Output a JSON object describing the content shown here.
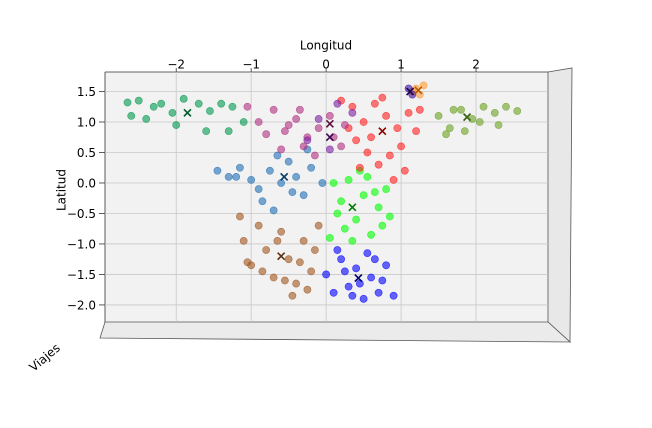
{
  "chart_data": {
    "type": "scatter",
    "x_label": "Longitud",
    "y_label": "Latitud",
    "z_label": "Viajes",
    "xlim": [
      -2.95,
      2.96
    ],
    "ylim": [
      -2.28,
      1.82
    ],
    "xticks": [
      {
        "value": -2,
        "label": "−2"
      },
      {
        "value": -1,
        "label": "−1"
      },
      0,
      1,
      2
    ],
    "yticks": [
      {
        "value": 1.5,
        "label": "1.5"
      },
      {
        "value": 1.0,
        "label": "1.0"
      },
      {
        "value": 0.5,
        "label": "0.5"
      },
      {
        "value": 0.0,
        "label": "0.0"
      },
      {
        "value": -0.5,
        "label": "−0.5"
      },
      {
        "value": -1.0,
        "label": "−1.0"
      },
      {
        "value": -1.5,
        "label": "−1.5"
      },
      {
        "value": -2.0,
        "label": "−2.0"
      }
    ],
    "grid": true,
    "series": [
      {
        "color": "#00994d",
        "centroid_color": "#005a2d",
        "centroid": [
          -1.85,
          1.15
        ],
        "x": [
          -2.65,
          -2.5,
          -2.3,
          -2.2,
          -2.05,
          -1.9,
          -1.7,
          -1.55,
          -1.4,
          -1.25,
          -1.1,
          -2.4,
          -2.0,
          -1.6,
          -1.3,
          -2.6
        ],
        "y": [
          1.32,
          1.35,
          1.25,
          1.3,
          1.15,
          1.38,
          1.3,
          1.18,
          1.3,
          1.25,
          1.0,
          1.05,
          0.95,
          0.85,
          0.85,
          1.1
        ]
      },
      {
        "color": "#1f6fb4",
        "centroid_color": "#0d3c66",
        "centroid": [
          -0.56,
          0.1
        ],
        "x": [
          -1.45,
          -1.3,
          -1.15,
          -1.0,
          -0.9,
          -0.75,
          -0.6,
          -0.5,
          -0.4,
          -0.3,
          -0.2,
          -0.85,
          -0.65,
          -0.45,
          -0.25,
          -0.05,
          -1.2,
          -0.7
        ],
        "y": [
          0.2,
          0.1,
          0.25,
          0.05,
          -0.1,
          0.2,
          0.0,
          0.35,
          0.1,
          -0.2,
          0.25,
          -0.3,
          0.45,
          -0.15,
          0.55,
          0.0,
          0.1,
          -0.45
        ]
      },
      {
        "color": "#a0561e",
        "centroid_color": "#5c2f0c",
        "centroid": [
          -0.6,
          -1.2
        ],
        "x": [
          -1.15,
          -1.1,
          -1.0,
          -0.9,
          -0.8,
          -0.7,
          -0.6,
          -0.5,
          -0.4,
          -0.3,
          -0.2,
          -0.1,
          -1.05,
          -0.85,
          -0.65,
          -0.45,
          -0.25,
          -0.55,
          -0.35,
          -0.15
        ],
        "y": [
          -0.55,
          -0.95,
          -1.35,
          -0.7,
          -1.1,
          -1.55,
          -0.8,
          -1.25,
          -1.65,
          -0.95,
          -1.45,
          -0.7,
          -1.3,
          -1.45,
          -0.95,
          -1.85,
          -1.75,
          -1.6,
          -1.3,
          -1.1
        ]
      },
      {
        "color": "#00ff00",
        "centroid_color": "#008000",
        "centroid": [
          0.35,
          -0.4
        ],
        "x": [
          0.1,
          0.2,
          0.3,
          0.4,
          0.5,
          0.6,
          0.7,
          0.8,
          0.15,
          0.35,
          0.55,
          0.75,
          0.25,
          0.45,
          0.65,
          0.05,
          0.85
        ],
        "y": [
          0.0,
          -0.3,
          0.05,
          -0.6,
          -0.2,
          -0.85,
          -0.4,
          -0.1,
          -0.5,
          -0.95,
          0.1,
          -0.7,
          -0.75,
          0.2,
          -0.15,
          -0.9,
          -0.55
        ]
      },
      {
        "color": "#0000ff",
        "centroid_color": "#00006e",
        "centroid": [
          0.43,
          -1.56
        ],
        "x": [
          0.0,
          0.1,
          0.2,
          0.3,
          0.4,
          0.5,
          0.6,
          0.7,
          0.8,
          0.9,
          0.15,
          0.35,
          0.55,
          0.75,
          0.25,
          0.65,
          0.45
        ],
        "y": [
          -1.5,
          -1.8,
          -1.25,
          -1.7,
          -1.4,
          -1.9,
          -1.55,
          -1.8,
          -1.35,
          -1.85,
          -1.1,
          -1.85,
          -1.15,
          -1.6,
          -1.45,
          -1.25,
          -1.65
        ]
      },
      {
        "color": "#ff2020",
        "centroid_color": "#8b0000",
        "centroid": [
          0.75,
          0.85
        ],
        "x": [
          0.2,
          0.35,
          0.5,
          0.65,
          0.8,
          0.95,
          1.1,
          1.25,
          0.4,
          0.6,
          0.85,
          1.0,
          1.2,
          0.3,
          0.7,
          0.9,
          1.05,
          0.55,
          0.75,
          0.45
        ],
        "y": [
          1.35,
          1.25,
          1.0,
          1.3,
          1.1,
          0.9,
          1.15,
          1.2,
          0.7,
          0.75,
          0.45,
          0.6,
          0.85,
          0.9,
          0.3,
          0.05,
          0.2,
          0.5,
          1.4,
          0.25
        ]
      },
      {
        "color": "#b03080",
        "centroid_color": "#5a0f3e",
        "centroid": [
          0.05,
          0.97
        ],
        "x": [
          -1.05,
          -0.9,
          -0.7,
          -0.55,
          -0.4,
          -0.25,
          -0.1,
          0.05,
          0.2,
          -0.8,
          -0.6,
          -0.35,
          -0.15,
          0.1,
          -0.5,
          -0.3,
          0.25
        ],
        "y": [
          1.25,
          1.0,
          1.2,
          0.85,
          1.05,
          0.75,
          0.9,
          1.1,
          0.6,
          0.8,
          0.55,
          1.2,
          0.45,
          0.75,
          0.95,
          0.6,
          0.95
        ]
      },
      {
        "color": "#7b1fa2",
        "centroid_color": "#3d0a52",
        "centroid": [
          0.05,
          0.75
        ],
        "x": [
          -0.1,
          0.15,
          0.35,
          -0.25,
          0.05
        ],
        "y": [
          1.05,
          1.3,
          1.15,
          0.7,
          0.55
        ]
      },
      {
        "color": "#6aa121",
        "centroid_color": "#3a6010",
        "centroid": [
          1.88,
          1.08
        ],
        "x": [
          1.5,
          1.65,
          1.8,
          1.95,
          2.1,
          2.25,
          2.4,
          2.55,
          1.6,
          1.85,
          2.05,
          2.3,
          1.7
        ],
        "y": [
          1.1,
          0.9,
          1.2,
          1.05,
          1.25,
          1.15,
          1.25,
          1.18,
          0.8,
          0.85,
          1.0,
          0.95,
          1.2
        ]
      },
      {
        "color": "#ff9933",
        "centroid_color": "#b35900",
        "centroid": [
          1.23,
          1.52
        ],
        "x": [
          1.2,
          1.25,
          1.3,
          1.15
        ],
        "y": [
          1.55,
          1.45,
          1.6,
          1.5
        ]
      },
      {
        "color": "#3a0ca3",
        "centroid_color": "#1a0550",
        "centroid": [
          1.12,
          1.5
        ],
        "x": [
          1.1,
          1.15
        ],
        "y": [
          1.55,
          1.45
        ]
      }
    ]
  }
}
